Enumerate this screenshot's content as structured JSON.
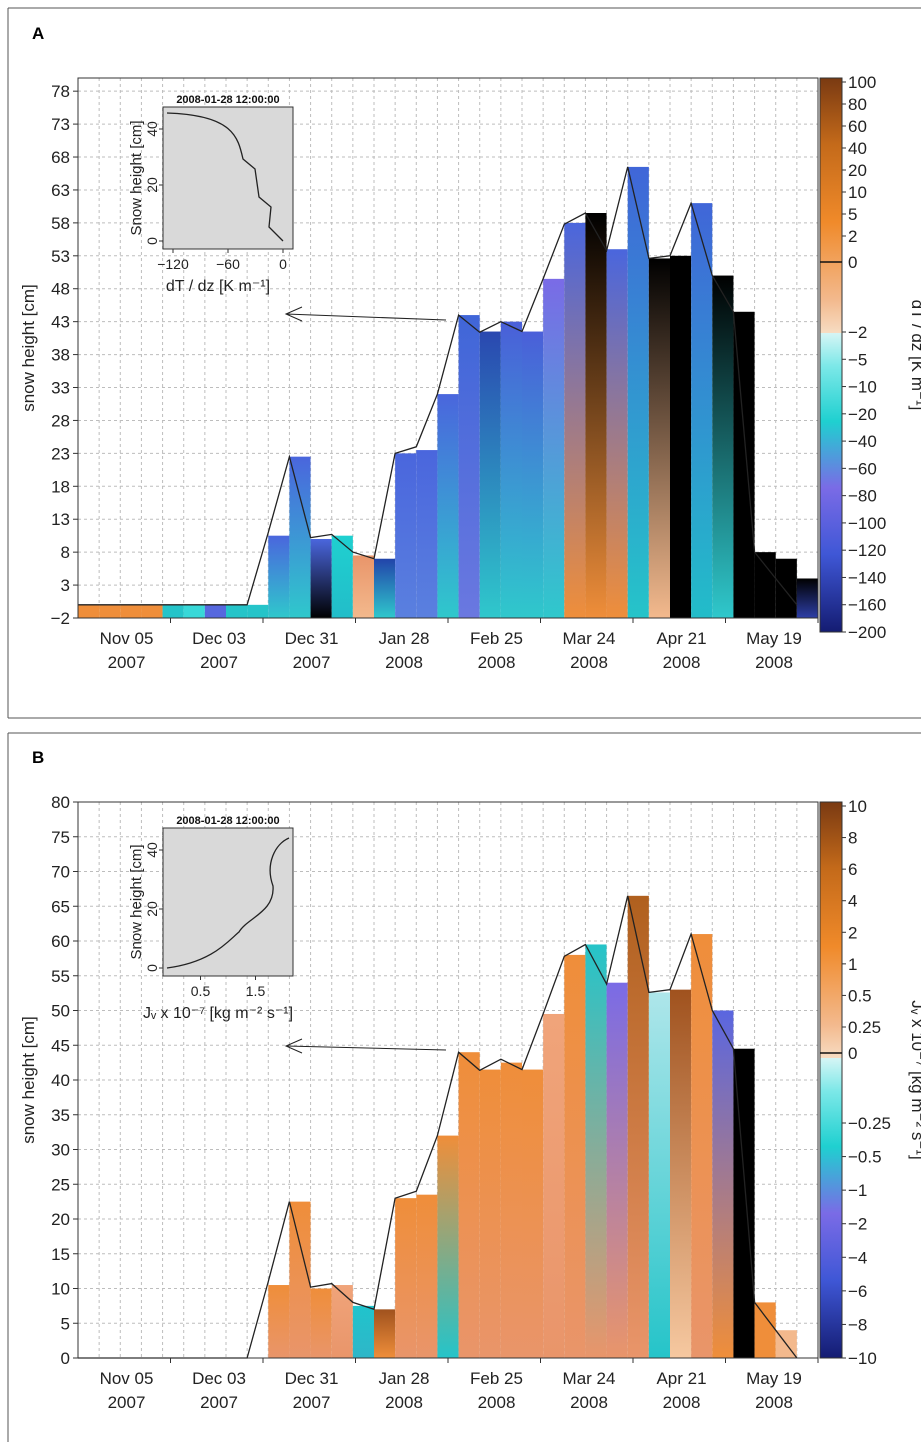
{
  "chart_data": [
    {
      "panel": "A",
      "type": "bar",
      "ylabel": "snow height [cm]",
      "ylim": [
        -2,
        80
      ],
      "yticks": [
        -2,
        3,
        8,
        13,
        18,
        23,
        28,
        33,
        38,
        43,
        48,
        53,
        58,
        63,
        68,
        73,
        78
      ],
      "xticks": [
        {
          "d": "Nov 05",
          "y": "2007"
        },
        {
          "d": "Dec 03",
          "y": "2007"
        },
        {
          "d": "Dec 31",
          "y": "2007"
        },
        {
          "d": "Jan 28",
          "y": "2008"
        },
        {
          "d": "Feb 25",
          "y": "2008"
        },
        {
          "d": "Mar 24",
          "y": "2008"
        },
        {
          "d": "Apr 21",
          "y": "2008"
        },
        {
          "d": "May 19",
          "y": "2008"
        }
      ],
      "snow_height_line": [
        0,
        0,
        0,
        0,
        0,
        0,
        0,
        0,
        0,
        11,
        22.5,
        10.2,
        10.7,
        8,
        7,
        23,
        24,
        32,
        44,
        41.4,
        43,
        41.5,
        49.5,
        57.8,
        59.5,
        53.8,
        66.5,
        52.6,
        53,
        61,
        50,
        44.5,
        8,
        4,
        0
      ],
      "bars": [
        {
          "h": 0,
          "base": "#ef8e3a"
        },
        {
          "h": 0,
          "base": "#ef8e3a"
        },
        {
          "h": 0,
          "base": "#ef8e3a"
        },
        {
          "h": 0,
          "base": "#ef8e3a"
        },
        {
          "h": 0,
          "base": "#25c4c9"
        },
        {
          "h": 0,
          "base": "#38d8d8"
        },
        {
          "h": 0,
          "base": "#5668de"
        },
        {
          "h": 0,
          "base": "#25c4c9"
        },
        {
          "h": 0,
          "base": "#25c4c9"
        },
        {
          "h": 10.5,
          "top": "#4a66dd",
          "bot": "#2fc8cc"
        },
        {
          "h": 22.5,
          "top": "#4a66dd",
          "bot": "#2fc8cc"
        },
        {
          "h": 10,
          "top": "#4a66dd",
          "bot": "#000000"
        },
        {
          "h": 10.5,
          "top": "#1fd0d0",
          "bot": "#22bdc9"
        },
        {
          "h": 7.5,
          "top": "#e9956a",
          "bot": "#f3b98d"
        },
        {
          "h": 7,
          "top": "#2244aa",
          "bot": "#2fc8cc"
        },
        {
          "h": 23,
          "top": "#4a66dd",
          "bot": "#5a80df"
        },
        {
          "h": 23.5,
          "top": "#4a66dd",
          "bot": "#5a80df"
        },
        {
          "h": 32,
          "top": "#4a66dd",
          "bot": "#2fc8cc"
        },
        {
          "h": 44,
          "top": "#4066d8",
          "bot": "#6a78e0"
        },
        {
          "h": 41.5,
          "top": "#2a48b0",
          "bot": "#2fc8cc"
        },
        {
          "h": 43,
          "top": "#4a5fd9",
          "bot": "#2fc8cc"
        },
        {
          "h": 41.5,
          "top": "#4a5fd9",
          "bot": "#2fc8cc"
        },
        {
          "h": 49.5,
          "top": "#7a6be6",
          "bot": "#2fc8cc"
        },
        {
          "h": 58,
          "top": "#4a66dd",
          "bot": "#ef8e3a"
        },
        {
          "h": 59.5,
          "top": "#000000",
          "bot": "#ef8e3a"
        },
        {
          "h": 54,
          "top": "#4a66dd",
          "bot": "#ef8e3a"
        },
        {
          "h": 66.5,
          "top": "#4066d8",
          "bot": "#25c4c9"
        },
        {
          "h": 52.6,
          "top": "#000000",
          "bot": "#f3b98d"
        },
        {
          "h": 53,
          "top": "#000000",
          "bot": "#000000"
        },
        {
          "h": 61,
          "top": "#4066d8",
          "bot": "#22bdc9"
        },
        {
          "h": 50,
          "top": "#000000",
          "bot": "#2fc8cc"
        },
        {
          "h": 44.5,
          "top": "#000000",
          "bot": "#000000"
        },
        {
          "h": 8,
          "top": "#000000",
          "bot": "#000000"
        },
        {
          "h": 7,
          "top": "#000000",
          "bot": "#000000"
        },
        {
          "h": 4,
          "top": "#000000",
          "bot": "#2d3ea6"
        }
      ],
      "inset": {
        "title": "2008-01-28 12:00:00",
        "ylabel": "Snow height [cm]",
        "xlabel": "dT / dz [K m⁻¹]",
        "xticks": [
          "−120",
          "−60",
          "0"
        ],
        "yticks": [
          "0",
          "20",
          "40"
        ]
      },
      "colorbar": {
        "label": "dT / dz [K m⁻¹]",
        "ticks_positive": [
          "100",
          "80",
          "60",
          "40",
          "20",
          "10",
          "5",
          "2"
        ],
        "ticks_zero": "0",
        "ticks_negative": [
          "−2",
          "−5",
          "−10",
          "−20",
          "−40",
          "−60",
          "−80",
          "−100",
          "−120",
          "−140",
          "−160",
          "−200"
        ]
      }
    },
    {
      "panel": "B",
      "type": "bar",
      "ylabel": "snow height [cm]",
      "ylim": [
        0,
        80
      ],
      "yticks": [
        0,
        5,
        10,
        15,
        20,
        25,
        30,
        35,
        40,
        45,
        50,
        55,
        60,
        65,
        70,
        75,
        80
      ],
      "xticks": [
        {
          "d": "Nov 05",
          "y": "2007"
        },
        {
          "d": "Dec 03",
          "y": "2007"
        },
        {
          "d": "Dec 31",
          "y": "2007"
        },
        {
          "d": "Jan 28",
          "y": "2008"
        },
        {
          "d": "Feb 25",
          "y": "2008"
        },
        {
          "d": "Mar 24",
          "y": "2008"
        },
        {
          "d": "Apr 21",
          "y": "2008"
        },
        {
          "d": "May 19",
          "y": "2008"
        }
      ],
      "snow_height_line": [
        0,
        0,
        0,
        0,
        0,
        0,
        0,
        0,
        0,
        11,
        22.5,
        10.2,
        10.7,
        8,
        7,
        23,
        24,
        32,
        44,
        41.4,
        43,
        41.5,
        49.5,
        57.8,
        59.5,
        53.8,
        66.5,
        52.6,
        53,
        61,
        50,
        44.5,
        8,
        4,
        0
      ],
      "bars": [
        {
          "h": 0
        },
        {
          "h": 0
        },
        {
          "h": 0
        },
        {
          "h": 0
        },
        {
          "h": 0
        },
        {
          "h": 0
        },
        {
          "h": 0
        },
        {
          "h": 0
        },
        {
          "h": 0
        },
        {
          "h": 10.5,
          "top": "#ef8e3a",
          "bot": "#e9956a"
        },
        {
          "h": 22.5,
          "top": "#ef8e3a",
          "bot": "#e9956a"
        },
        {
          "h": 10,
          "top": "#ef8e3a",
          "bot": "#e9956a"
        },
        {
          "h": 10.5,
          "top": "#f0a47a",
          "bot": "#e9956a"
        },
        {
          "h": 7.5,
          "top": "#20c4cc",
          "bot": "#2fb6c8"
        },
        {
          "h": 7,
          "top": "#a0521e",
          "bot": "#ef8e3a"
        },
        {
          "h": 23,
          "top": "#ef8e3a",
          "bot": "#e9956a"
        },
        {
          "h": 23.5,
          "top": "#ef8e3a",
          "bot": "#e9956a"
        },
        {
          "h": 32,
          "top": "#ef8e3a",
          "bot": "#25c4c9"
        },
        {
          "h": 44,
          "top": "#ef8e3a",
          "bot": "#e9956a"
        },
        {
          "h": 41.5,
          "top": "#ef8e3a",
          "bot": "#e9956a"
        },
        {
          "h": 42.5,
          "top": "#ef8e3a",
          "bot": "#e9956a"
        },
        {
          "h": 41.5,
          "top": "#ef8e3a",
          "bot": "#e9956a"
        },
        {
          "h": 49.5,
          "top": "#f0a47a",
          "bot": "#e9956a"
        },
        {
          "h": 58,
          "top": "#ef8e3a",
          "bot": "#e9956a"
        },
        {
          "h": 59.5,
          "top": "#25c4c9",
          "bot": "#e9956a"
        },
        {
          "h": 54,
          "top": "#7a6be6",
          "bot": "#e9956a"
        },
        {
          "h": 66.5,
          "top": "#b0601e",
          "bot": "#e9956a"
        },
        {
          "h": 52.6,
          "top": "#aee6ea",
          "bot": "#25c4c9"
        },
        {
          "h": 53,
          "top": "#a0521e",
          "bot": "#f6c8a0"
        },
        {
          "h": 61,
          "top": "#ef8e3a",
          "bot": "#e9956a"
        },
        {
          "h": 50,
          "top": "#5a66e0",
          "bot": "#ef8e3a"
        },
        {
          "h": 44.5,
          "top": "#000000",
          "bot": "#000000"
        },
        {
          "h": 8,
          "top": "#ef8e3a",
          "bot": "#ef8e3a"
        },
        {
          "h": 4,
          "top": "#f3b98d",
          "bot": "#f3b98d"
        },
        {
          "h": 0
        }
      ],
      "inset": {
        "title": "2008-01-28 12:00:00",
        "ylabel": "Snow height [cm]",
        "xlabel": "Jᵥ x 10⁻⁷ [kg m⁻² s⁻¹]",
        "xticks": [
          "0.5",
          "1.5"
        ],
        "yticks": [
          "0",
          "20",
          "40"
        ]
      },
      "colorbar": {
        "label": "Jᵥ x 10⁻⁷ [kg m⁻² s⁻¹]",
        "ticks_positive": [
          "10",
          "8",
          "6",
          "4",
          "2",
          "1",
          "0.5",
          "0.25"
        ],
        "ticks_zero": "0",
        "ticks_negative": [
          "−0.25",
          "−0.5",
          "−1",
          "−2",
          "−4",
          "−6",
          "−8",
          "−10"
        ]
      }
    }
  ],
  "panels": {
    "a": "A",
    "b": "B"
  }
}
